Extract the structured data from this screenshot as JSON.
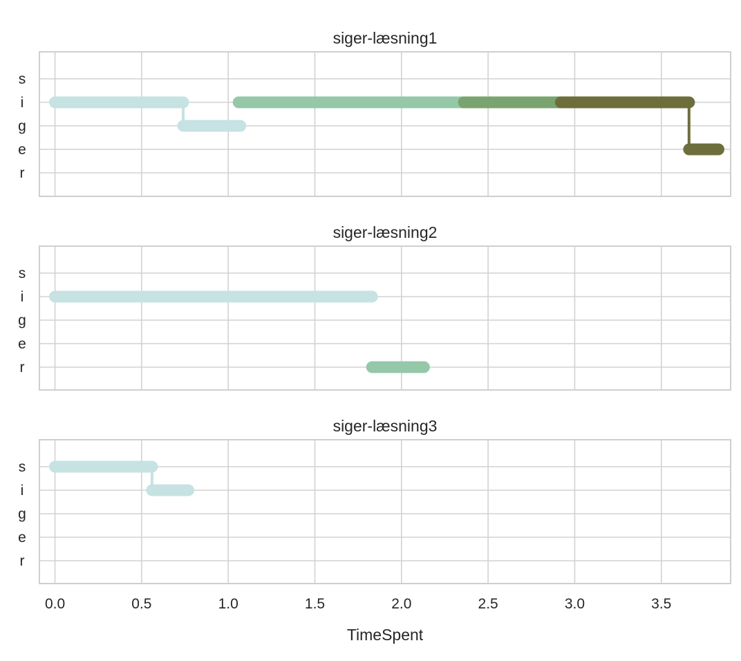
{
  "chart_data": {
    "type": "line",
    "xlabel": "TimeSpent",
    "xlim": [
      -0.09,
      3.9
    ],
    "x_ticks": [
      0.0,
      0.5,
      1.0,
      1.5,
      2.0,
      2.5,
      3.0,
      3.5
    ],
    "x_tick_labels": [
      "0.0",
      "0.5",
      "1.0",
      "1.5",
      "2.0",
      "2.5",
      "3.0",
      "3.5"
    ],
    "y_categories": [
      "s",
      "i",
      "g",
      "e",
      "r"
    ],
    "grid": true,
    "panels": [
      {
        "title": "siger-læsning1",
        "series": [
          {
            "color": "#c6e2e3",
            "points": [
              [
                0.0,
                "i"
              ],
              [
                0.74,
                "i"
              ],
              [
                0.74,
                "g"
              ],
              [
                1.07,
                "g"
              ]
            ]
          },
          {
            "color": "#95c8a8",
            "points": [
              [
                1.06,
                "i"
              ],
              [
                2.37,
                "i"
              ]
            ]
          },
          {
            "color": "#7aa46f",
            "points": [
              [
                2.36,
                "i"
              ],
              [
                2.93,
                "i"
              ]
            ]
          },
          {
            "color": "#6e6e3c",
            "points": [
              [
                2.92,
                "i"
              ],
              [
                3.66,
                "i"
              ],
              [
                3.66,
                "e"
              ],
              [
                3.83,
                "e"
              ]
            ]
          }
        ]
      },
      {
        "title": "siger-læsning2",
        "series": [
          {
            "color": "#c6e2e3",
            "points": [
              [
                0.0,
                "i"
              ],
              [
                1.83,
                "i"
              ]
            ]
          },
          {
            "color": "#95c8a8",
            "points": [
              [
                1.83,
                "r"
              ],
              [
                2.13,
                "r"
              ]
            ]
          }
        ]
      },
      {
        "title": "siger-læsning3",
        "series": [
          {
            "color": "#c6e2e3",
            "points": [
              [
                0.0,
                "s"
              ],
              [
                0.56,
                "s"
              ],
              [
                0.56,
                "i"
              ],
              [
                0.77,
                "i"
              ]
            ]
          }
        ]
      }
    ]
  }
}
